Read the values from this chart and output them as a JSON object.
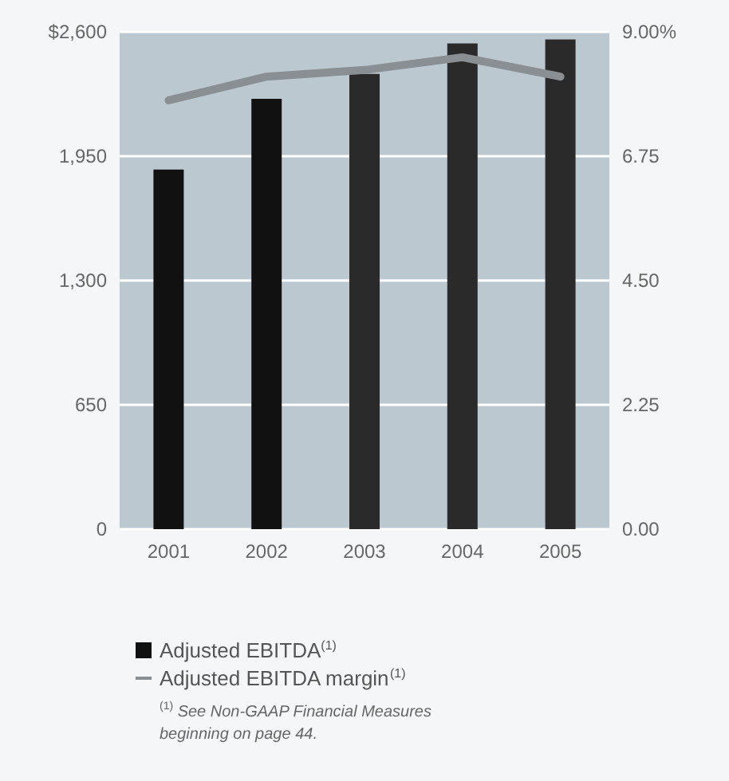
{
  "chart_data": {
    "type": "bar",
    "categories": [
      "2001",
      "2002",
      "2003",
      "2004",
      "2005"
    ],
    "series": [
      {
        "name": "Adjusted EBITDA$^{(1)}$",
        "colors": [
          "#111111",
          "#111111",
          "#2a2a2a",
          "#2a2a2a",
          "#2a2a2a"
        ],
        "values": [
          1880,
          2250,
          2380,
          2540,
          2560
        ]
      },
      {
        "name": "Adjusted EBITDA margin$^{(1)}$",
        "type": "line",
        "axis": "y2",
        "color": "#8a8f93",
        "values": [
          7.76,
          8.19,
          8.31,
          8.54,
          8.19
        ]
      }
    ],
    "ylim": [
      0,
      2600
    ],
    "yticks": [
      0,
      {
        "value": 650,
        "label": "650"
      },
      {
        "value": 1300,
        "label": "1,300"
      },
      {
        "value": 1950,
        "label": "1,950"
      },
      {
        "value": 2600,
        "label": "$2,600"
      }
    ],
    "y2lim": [
      0,
      9
    ],
    "y2ticks": [
      {
        "value": 0,
        "label": "0.00"
      },
      {
        "value": 2.25,
        "label": "2.25"
      },
      {
        "value": 4.5,
        "label": "4.50"
      },
      {
        "value": 6.75,
        "label": "6.75"
      },
      {
        "value": 9,
        "label": "9.00%"
      }
    ],
    "grid": "y",
    "legend": "bottom left",
    "marker": "none",
    "line_style": "solid",
    "annotations": [
      "$^{(1)}$ See Non-GAAP Financial Measures beginning on page 44."
    ]
  }
}
